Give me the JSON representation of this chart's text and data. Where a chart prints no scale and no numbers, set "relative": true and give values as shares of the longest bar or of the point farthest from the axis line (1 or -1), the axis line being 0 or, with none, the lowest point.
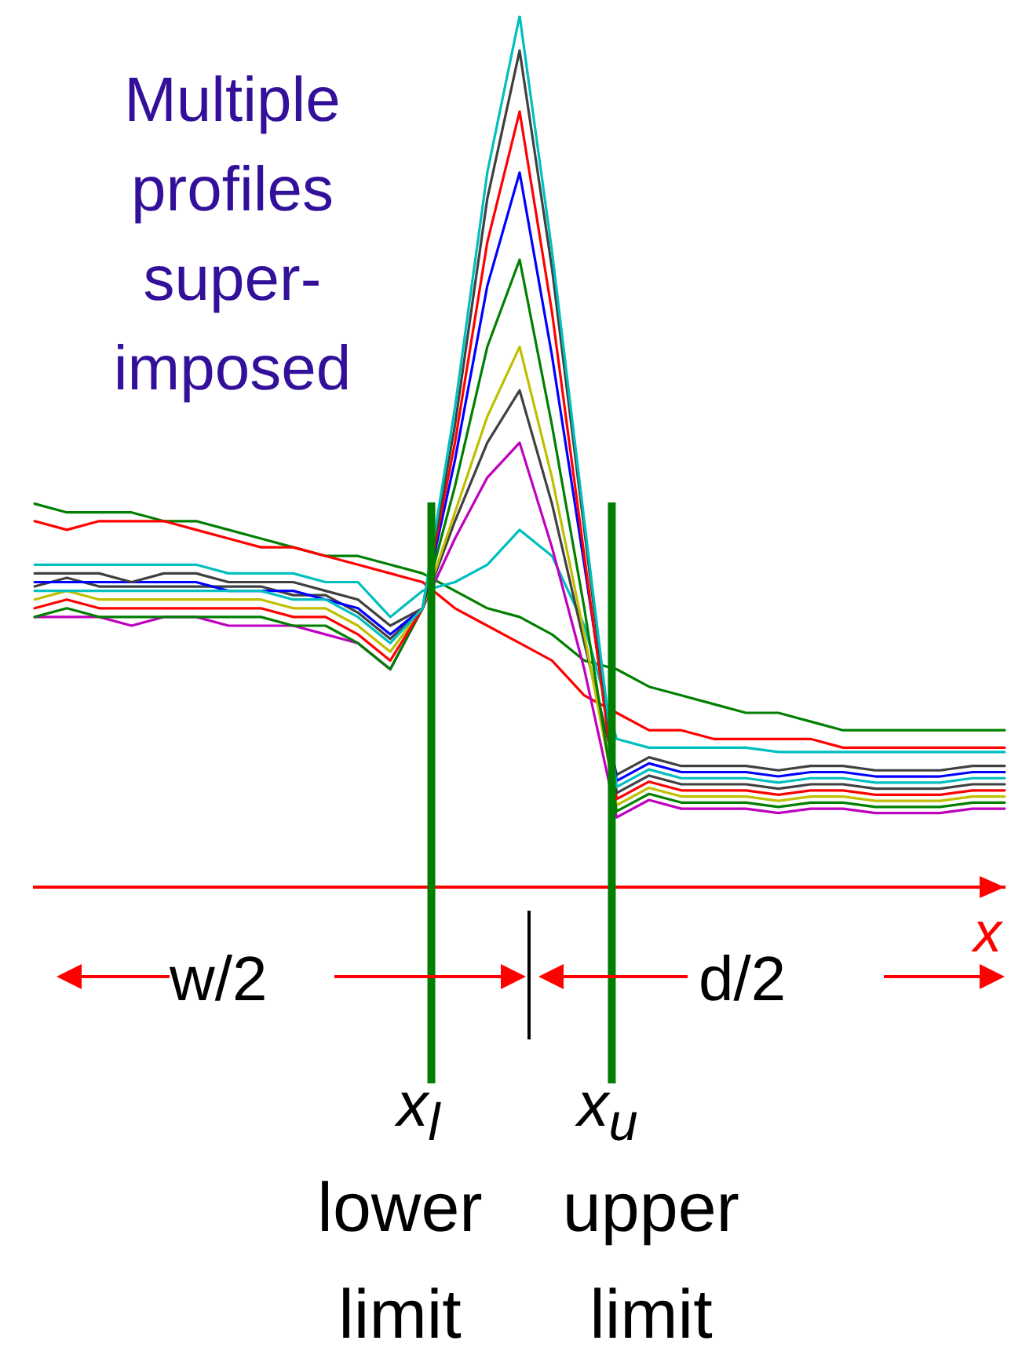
{
  "chart_data": {
    "type": "line",
    "relative": true,
    "xlabel": "x",
    "legend": false,
    "marker": "none",
    "line_style": "solid",
    "categories": [
      null,
      null,
      null,
      null,
      null,
      null,
      null,
      null,
      null,
      null,
      null,
      null,
      null,
      null,
      null,
      null,
      null,
      null,
      null,
      null,
      null,
      null,
      null,
      null,
      null,
      null,
      null,
      null,
      null,
      null,
      null
    ],
    "series": [
      {
        "color": "#00bfbf",
        "values": [
          0.34,
          0.34,
          0.34,
          0.34,
          0.34,
          0.34,
          0.34,
          0.34,
          0.33,
          0.33,
          0.31,
          0.28,
          0.32,
          0.55,
          0.82,
          1,
          0.73,
          0.42,
          0.115,
          0.135,
          0.125,
          0.125,
          0.125,
          0.12,
          0.125,
          0.125,
          0.12,
          0.12,
          0.12,
          0.125,
          0.125
        ]
      },
      {
        "color": "#404040",
        "values": [
          0.36,
          0.36,
          0.36,
          0.35,
          0.36,
          0.36,
          0.35,
          0.35,
          0.35,
          0.34,
          0.33,
          0.3,
          0.32,
          0.53,
          0.79,
          0.96,
          0.71,
          0.41,
          0.108,
          0.128,
          0.118,
          0.118,
          0.118,
          0.113,
          0.118,
          0.118,
          0.113,
          0.113,
          0.113,
          0.118,
          0.118
        ]
      },
      {
        "color": "#ff0000",
        "values": [
          0.32,
          0.33,
          0.32,
          0.32,
          0.32,
          0.32,
          0.32,
          0.32,
          0.31,
          0.31,
          0.29,
          0.26,
          0.32,
          0.51,
          0.74,
          0.89,
          0.66,
          0.38,
          0.101,
          0.121,
          0.111,
          0.111,
          0.111,
          0.106,
          0.111,
          0.111,
          0.106,
          0.106,
          0.106,
          0.111,
          0.111
        ]
      },
      {
        "color": "#0000ff",
        "values": [
          0.35,
          0.35,
          0.35,
          0.35,
          0.35,
          0.35,
          0.34,
          0.34,
          0.34,
          0.33,
          0.32,
          0.29,
          0.32,
          0.49,
          0.69,
          0.82,
          0.61,
          0.37,
          0.122,
          0.142,
          0.132,
          0.132,
          0.132,
          0.127,
          0.132,
          0.132,
          0.127,
          0.127,
          0.127,
          0.132,
          0.132
        ]
      },
      {
        "color": "#007f00",
        "values": [
          0.31,
          0.32,
          0.31,
          0.31,
          0.31,
          0.31,
          0.31,
          0.31,
          0.3,
          0.3,
          0.28,
          0.25,
          0.32,
          0.46,
          0.62,
          0.72,
          0.53,
          0.32,
          0.087,
          0.107,
          0.097,
          0.097,
          0.097,
          0.092,
          0.097,
          0.097,
          0.092,
          0.092,
          0.092,
          0.097,
          0.097
        ]
      },
      {
        "color": "#bfbf00",
        "values": [
          0.33,
          0.34,
          0.33,
          0.33,
          0.33,
          0.33,
          0.33,
          0.33,
          0.32,
          0.32,
          0.3,
          0.27,
          0.32,
          0.43,
          0.54,
          0.62,
          0.47,
          0.29,
          0.094,
          0.114,
          0.104,
          0.104,
          0.104,
          0.099,
          0.104,
          0.104,
          0.099,
          0.099,
          0.099,
          0.104,
          0.104
        ]
      },
      {
        "color": "#404040",
        "values": [
          0.345,
          0.355,
          0.345,
          0.345,
          0.345,
          0.345,
          0.345,
          0.345,
          0.335,
          0.335,
          0.315,
          0.285,
          0.32,
          0.42,
          0.51,
          0.57,
          0.44,
          0.28,
          0.129,
          0.149,
          0.139,
          0.139,
          0.139,
          0.134,
          0.139,
          0.139,
          0.134,
          0.134,
          0.134,
          0.139,
          0.139
        ]
      },
      {
        "color": "#bf00bf",
        "values": [
          0.31,
          0.31,
          0.31,
          0.3,
          0.31,
          0.31,
          0.3,
          0.3,
          0.3,
          0.29,
          0.28,
          0.25,
          0.32,
          0.4,
          0.47,
          0.51,
          0.39,
          0.25,
          0.08,
          0.1,
          0.09,
          0.09,
          0.09,
          0.085,
          0.09,
          0.09,
          0.085,
          0.085,
          0.085,
          0.09,
          0.09
        ]
      },
      {
        "color": "#00bfbf",
        "values": [
          0.37,
          0.37,
          0.37,
          0.37,
          0.37,
          0.37,
          0.36,
          0.36,
          0.36,
          0.35,
          0.35,
          0.31,
          0.34,
          0.35,
          0.37,
          0.41,
          0.38,
          0.3,
          0.17,
          0.16,
          0.16,
          0.16,
          0.16,
          0.155,
          0.155,
          0.155,
          0.155,
          0.155,
          0.155,
          0.155,
          0.155
        ]
      },
      {
        "color": "#ff0000",
        "values": [
          0.42,
          0.41,
          0.42,
          0.42,
          0.42,
          0.41,
          0.4,
          0.39,
          0.39,
          0.38,
          0.37,
          0.36,
          0.35,
          0.32,
          0.3,
          0.28,
          0.26,
          0.22,
          0.2,
          0.18,
          0.18,
          0.17,
          0.17,
          0.17,
          0.17,
          0.16,
          0.16,
          0.16,
          0.16,
          0.16,
          0.16
        ]
      },
      {
        "color": "#007f00",
        "values": [
          0.44,
          0.43,
          0.43,
          0.43,
          0.42,
          0.42,
          0.41,
          0.4,
          0.39,
          0.38,
          0.38,
          0.37,
          0.36,
          0.34,
          0.32,
          0.31,
          0.29,
          0.26,
          0.25,
          0.23,
          0.22,
          0.21,
          0.2,
          0.2,
          0.19,
          0.18,
          0.18,
          0.18,
          0.18,
          0.18,
          0.18
        ]
      }
    ],
    "ref_lines": [
      {
        "axis": "x",
        "label": "x$_{l}$",
        "color": "#007f00"
      },
      {
        "axis": "x",
        "label": "x$_{u}$",
        "color": "#007f00"
      }
    ],
    "annotations": [
      "Multiple profiles super-imposed",
      "w/2",
      "d/2",
      "lower limit",
      "upper limit"
    ]
  }
}
